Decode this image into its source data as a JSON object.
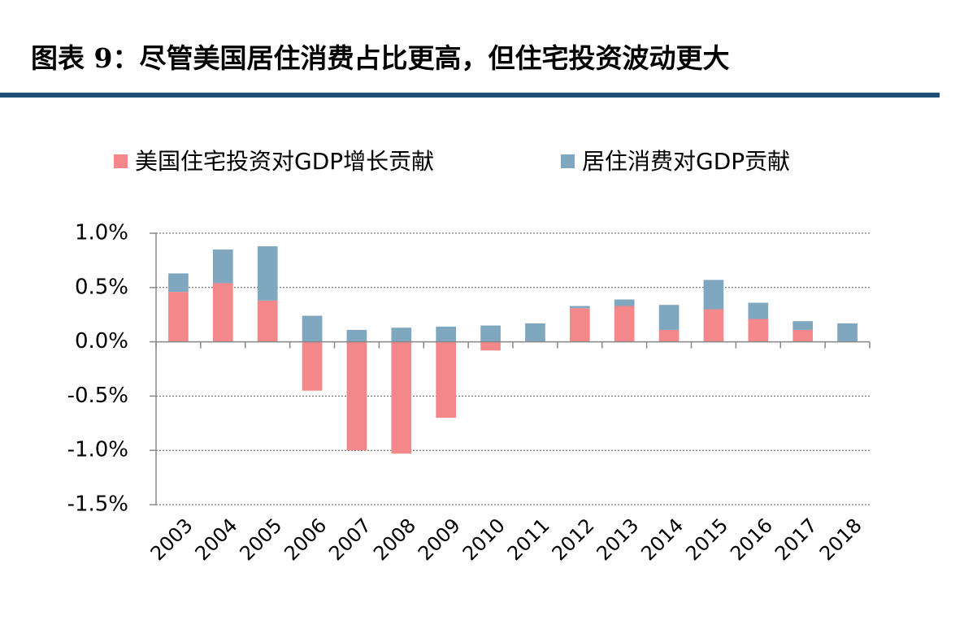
{
  "chart_data": {
    "type": "bar",
    "stacked": true,
    "title": "图表 9：尽管美国居住消费占比更高，但住宅投资波动更大",
    "categories": [
      "2003",
      "2004",
      "2005",
      "2006",
      "2007",
      "2008",
      "2009",
      "2010",
      "2011",
      "2012",
      "2013",
      "2014",
      "2015",
      "2016",
      "2017",
      "2018"
    ],
    "series": [
      {
        "name": "美国住宅投资对GDP增长贡献",
        "color": "#f4878a",
        "values": [
          0.46,
          0.54,
          0.38,
          -0.45,
          -1.0,
          -1.03,
          -0.7,
          -0.08,
          0,
          0.31,
          0.33,
          0.11,
          0.3,
          0.21,
          0.11,
          0
        ]
      },
      {
        "name": "居住消费对GDP贡献",
        "color": "#7fa7c0",
        "values": [
          0.17,
          0.31,
          0.5,
          0.24,
          0.11,
          0.13,
          0.14,
          0.15,
          0.17,
          0.02,
          0.06,
          0.23,
          0.27,
          0.15,
          0.08,
          0.17
        ]
      }
    ],
    "ylim": [
      -1.5,
      1.0
    ],
    "yticks": [
      {
        "value": -1.5,
        "label": "-1.5%"
      },
      {
        "value": -1.0,
        "label": "-1.0%"
      },
      {
        "value": -0.5,
        "label": "-0.5%"
      },
      {
        "value": 0,
        "label": "0.0%"
      },
      {
        "value": 0.5,
        "label": "0.5%"
      },
      {
        "value": 1.0,
        "label": "1.0%"
      }
    ],
    "grid": true
  }
}
